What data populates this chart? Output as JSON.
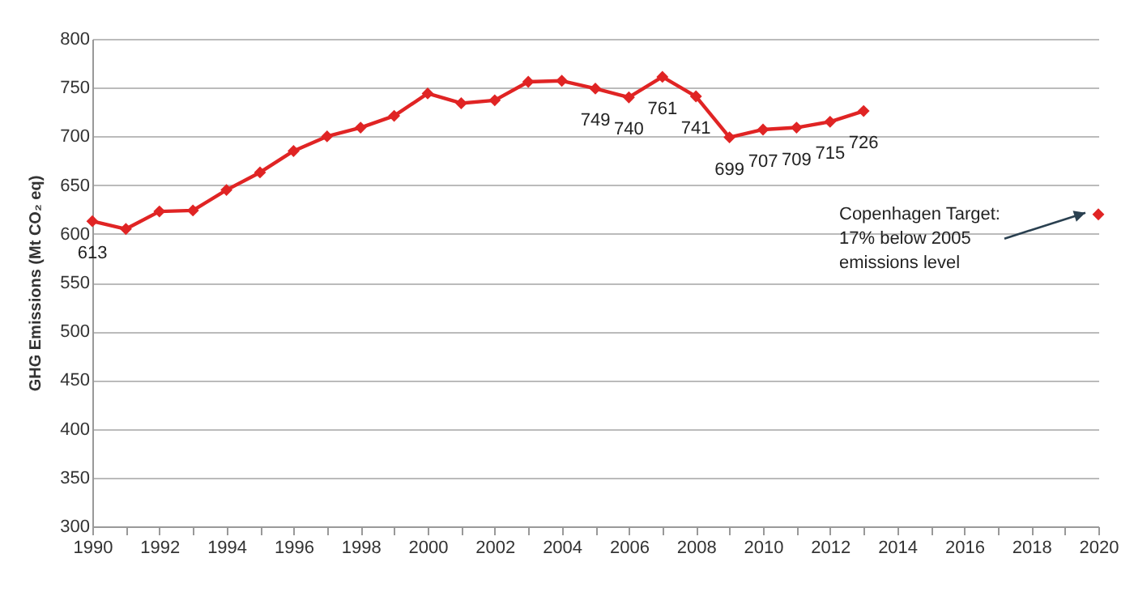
{
  "chart_data": {
    "type": "line",
    "ylabel": "GHG Emissions (Mt CO₂ eq)",
    "x": [
      1990,
      1991,
      1992,
      1993,
      1994,
      1995,
      1996,
      1997,
      1998,
      1999,
      2000,
      2001,
      2002,
      2003,
      2004,
      2005,
      2006,
      2007,
      2008,
      2009,
      2010,
      2011,
      2012,
      2013
    ],
    "series": [
      {
        "color": "#e02424",
        "values": [
          613,
          605,
          623,
          624,
          645,
          663,
          685,
          700,
          709,
          721,
          744,
          734,
          737,
          756,
          757,
          749,
          740,
          761,
          741,
          699,
          707,
          709,
          715,
          726
        ],
        "value_labels": [
          "613",
          null,
          null,
          null,
          null,
          null,
          null,
          null,
          null,
          null,
          null,
          null,
          null,
          null,
          null,
          "749",
          "740",
          "761",
          "741",
          "699",
          "707",
          "709",
          "715",
          "726"
        ]
      },
      {
        "type": "scatter",
        "color": "#e02424",
        "x": [
          2020
        ],
        "values": [
          620
        ]
      }
    ],
    "marker": "diamond",
    "line_style": "solid",
    "xlim": [
      1990,
      2020
    ],
    "xticks": [
      1990,
      {
        "value": 1991,
        "label": null
      },
      1992,
      {
        "value": 1993,
        "label": null
      },
      1994,
      {
        "value": 1995,
        "label": null
      },
      1996,
      {
        "value": 1997,
        "label": null
      },
      1998,
      {
        "value": 1999,
        "label": null
      },
      2000,
      {
        "value": 2001,
        "label": null
      },
      2002,
      {
        "value": 2003,
        "label": null
      },
      2004,
      {
        "value": 2005,
        "label": null
      },
      2006,
      {
        "value": 2007,
        "label": null
      },
      2008,
      {
        "value": 2009,
        "label": null
      },
      2010,
      {
        "value": 2011,
        "label": null
      },
      2012,
      {
        "value": 2013,
        "label": null
      },
      2014,
      {
        "value": 2015,
        "label": null
      },
      2016,
      {
        "value": 2017,
        "label": null
      },
      2018,
      {
        "value": 2019,
        "label": null
      },
      2020
    ],
    "ylim": [
      300,
      800
    ],
    "yticks": [
      300,
      350,
      400,
      450,
      500,
      550,
      600,
      650,
      700,
      750,
      800
    ],
    "grid": "y",
    "annotations": [
      {
        "text": "Copenhagen Target: 17% below 2005 emissions level",
        "x": 2020,
        "y": 620
      }
    ]
  }
}
